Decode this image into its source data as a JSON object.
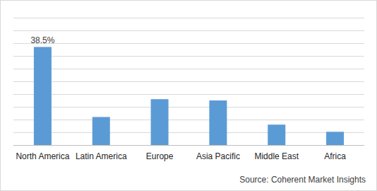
{
  "chart_data": {
    "type": "bar",
    "categories": [
      "North America",
      "Latin America",
      "Europe",
      "Asia Pacific",
      "Middle East",
      "Africa"
    ],
    "values": [
      38.5,
      11,
      18,
      17.5,
      8,
      5.2
    ],
    "value_labels": [
      "38.5%",
      null,
      null,
      null,
      null,
      null
    ],
    "data_labels": true,
    "color": "#5b9bd5",
    "ylim": [
      0,
      50
    ],
    "yticks": [
      0,
      5,
      10,
      15,
      20,
      25,
      30,
      35,
      40,
      45,
      50
    ],
    "grid": true,
    "tick_labels": "x",
    "source": "Source: Coherent Market Insights"
  }
}
